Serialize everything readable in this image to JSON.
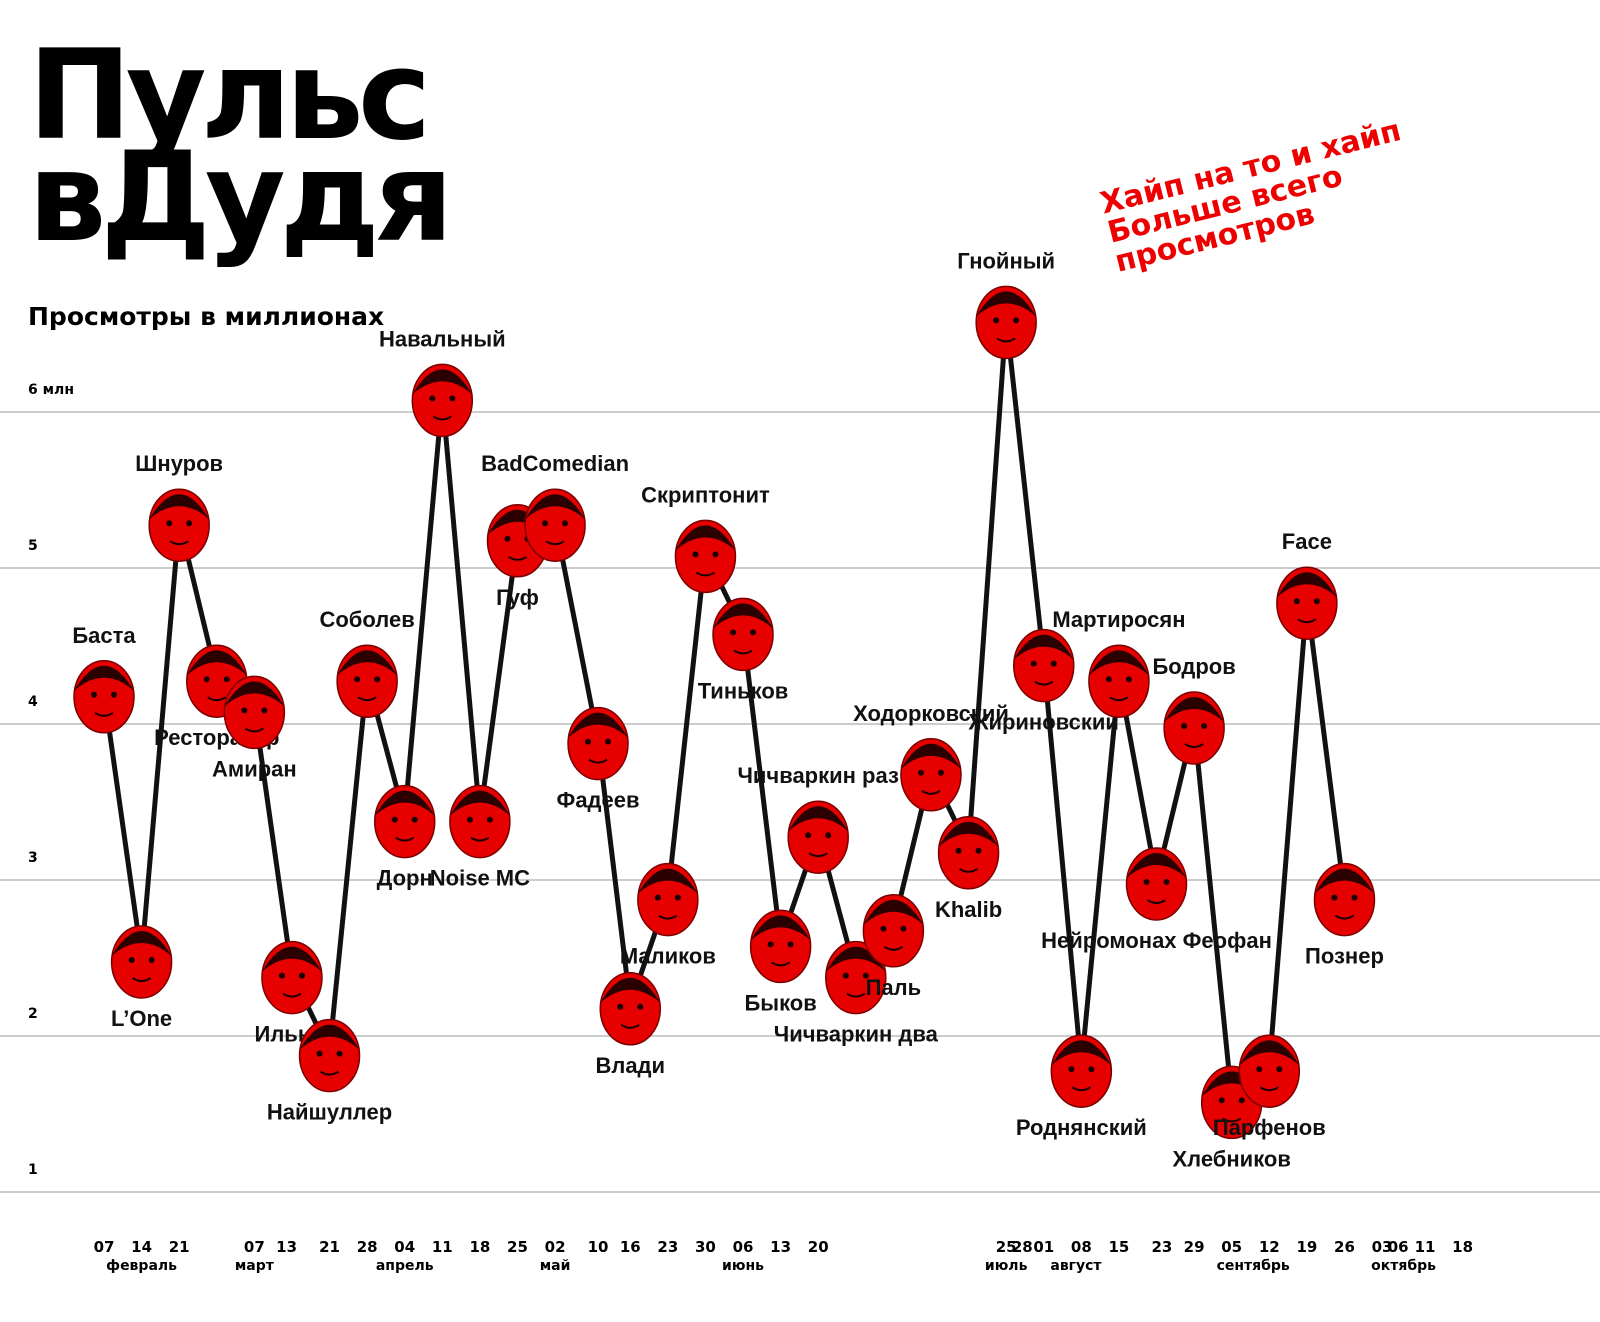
{
  "chart_data": {
    "type": "line",
    "title_lines": [
      "Пульс",
      "вДудя"
    ],
    "subtitle": "Просмотры в миллионах",
    "annotation_lines": [
      "Хайп на то и хайп",
      "Больше всего",
      "просмотров"
    ],
    "ylim": [
      0.9,
      7.6
    ],
    "grid": true,
    "yticks": [
      {
        "value": 1,
        "label": "1"
      },
      {
        "value": 2,
        "label": "2"
      },
      {
        "value": 3,
        "label": "3"
      },
      {
        "value": 4,
        "label": "4"
      },
      {
        "value": 5,
        "label": "5"
      },
      {
        "value": 6,
        "label": "6 млн"
      }
    ],
    "xticks": [
      {
        "d": 35,
        "label": "07"
      },
      {
        "d": 42,
        "label": "14"
      },
      {
        "d": 49,
        "label": "21"
      },
      {
        "d": 63,
        "label": "07"
      },
      {
        "d": 69,
        "label": "13"
      },
      {
        "d": 77,
        "label": "21"
      },
      {
        "d": 84,
        "label": "28"
      },
      {
        "d": 91,
        "label": "04"
      },
      {
        "d": 98,
        "label": "11"
      },
      {
        "d": 105,
        "label": "18"
      },
      {
        "d": 112,
        "label": "25"
      },
      {
        "d": 119,
        "label": "02"
      },
      {
        "d": 127,
        "label": "10"
      },
      {
        "d": 133,
        "label": "16"
      },
      {
        "d": 140,
        "label": "23"
      },
      {
        "d": 147,
        "label": "30"
      },
      {
        "d": 154,
        "label": "06"
      },
      {
        "d": 161,
        "label": "13"
      },
      {
        "d": 168,
        "label": "20"
      },
      {
        "d": 203,
        "label": "25"
      },
      {
        "d": 206,
        "label": "28"
      },
      {
        "d": 210,
        "label": "01"
      },
      {
        "d": 217,
        "label": "08"
      },
      {
        "d": 224,
        "label": "15"
      },
      {
        "d": 232,
        "label": "23"
      },
      {
        "d": 238,
        "label": "29"
      },
      {
        "d": 245,
        "label": "05"
      },
      {
        "d": 252,
        "label": "12"
      },
      {
        "d": 259,
        "label": "19"
      },
      {
        "d": 266,
        "label": "26"
      },
      {
        "d": 273,
        "label": "03"
      },
      {
        "d": 276,
        "label": "06"
      },
      {
        "d": 281,
        "label": "11"
      },
      {
        "d": 288,
        "label": "18"
      }
    ],
    "months": [
      {
        "d": 42,
        "label": "февраль"
      },
      {
        "d": 63,
        "label": "март"
      },
      {
        "d": 91,
        "label": "апрель"
      },
      {
        "d": 119,
        "label": "май"
      },
      {
        "d": 154,
        "label": "июнь"
      },
      {
        "d": 203,
        "label": "июль"
      },
      {
        "d": 216,
        "label": "август"
      },
      {
        "d": 249,
        "label": "сентябрь"
      },
      {
        "d": 277,
        "label": "октябрь"
      }
    ],
    "series": [
      {
        "points": [
          {
            "d": 35,
            "y": 4.2,
            "label": "Баста"
          },
          {
            "d": 42,
            "y": 2.5,
            "label": "L’One"
          },
          {
            "d": 49,
            "y": 5.3,
            "label": "Шнуров"
          },
          {
            "d": 56,
            "y": 4.3,
            "label": "Ресторатор"
          },
          {
            "d": 63,
            "y": 4.1,
            "label": "Амиран"
          },
          {
            "d": 70,
            "y": 2.4,
            "label": "Ильыч"
          },
          {
            "d": 77,
            "y": 1.9,
            "label": "Найшуллер"
          },
          {
            "d": 84,
            "y": 4.3,
            "label": "Соболев"
          },
          {
            "d": 91,
            "y": 3.4,
            "label": "Дорн"
          },
          {
            "d": 98,
            "y": 6.1,
            "label": "Навальный"
          },
          {
            "d": 105,
            "y": 3.4,
            "label": "Noise MC"
          },
          {
            "d": 112,
            "y": 5.2,
            "label": "Гуф"
          },
          {
            "d": 119,
            "y": 5.3,
            "label": "BadComedian"
          },
          {
            "d": 127,
            "y": 3.9,
            "label": "Фадеев"
          },
          {
            "d": 133,
            "y": 2.2,
            "label": "Влади"
          },
          {
            "d": 140,
            "y": 2.9,
            "label": "Маликов"
          },
          {
            "d": 147,
            "y": 5.1,
            "label": "Скриптонит"
          },
          {
            "d": 154,
            "y": 4.6,
            "label": "Тиньков"
          },
          {
            "d": 161,
            "y": 2.6,
            "label": "Быков"
          },
          {
            "d": 168,
            "y": 3.3,
            "label": "Чичваркин раз"
          },
          {
            "d": 175,
            "y": 2.4,
            "label": "Чичваркин два"
          },
          {
            "d": 182,
            "y": 2.7,
            "label": "Паль"
          },
          {
            "d": 189,
            "y": 3.7,
            "label": "Ходорковский"
          },
          {
            "d": 196,
            "y": 3.2,
            "label": "Khalib"
          },
          {
            "d": 203,
            "y": 6.6,
            "label": "Гнойный"
          },
          {
            "d": 210,
            "y": 4.4,
            "label": "Жириновский"
          },
          {
            "d": 217,
            "y": 1.8,
            "label": "Роднянский"
          },
          {
            "d": 224,
            "y": 4.3,
            "label": "Мартиросян"
          },
          {
            "d": 231,
            "y": 3.0,
            "label": "Нейромонах Феофан"
          },
          {
            "d": 238,
            "y": 4.0,
            "label": "Бодров"
          },
          {
            "d": 245,
            "y": 1.6,
            "label": "Хлебников"
          },
          {
            "d": 252,
            "y": 1.8,
            "label": "Парфенов"
          },
          {
            "d": 259,
            "y": 4.8,
            "label": "Face"
          },
          {
            "d": 266,
            "y": 2.9,
            "label": "Познер"
          }
        ]
      }
    ]
  }
}
